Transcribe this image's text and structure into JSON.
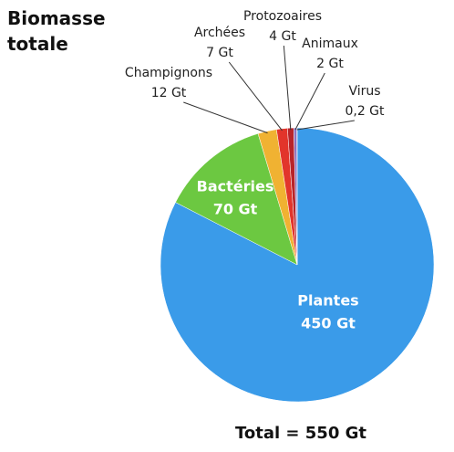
{
  "chart_data": {
    "type": "pie",
    "title": "Biomasse totale",
    "categories": [
      "Plantes",
      "Bactéries",
      "Champignons",
      "Archées",
      "Protozoaires",
      "Animaux",
      "Virus"
    ],
    "values": [
      450,
      70,
      12,
      7,
      4,
      2,
      0.2
    ],
    "value_labels": [
      "450 Gt",
      "70 Gt",
      "12 Gt",
      "7 Gt",
      "4 Gt",
      "2 Gt",
      "0,2 Gt"
    ],
    "colors": [
      "#3a9be9",
      "#6cc841",
      "#f0b232",
      "#e2342b",
      "#b8242a",
      "#8c72c0",
      "#6f86a8"
    ],
    "annotation": "Total = 550 Gt"
  }
}
